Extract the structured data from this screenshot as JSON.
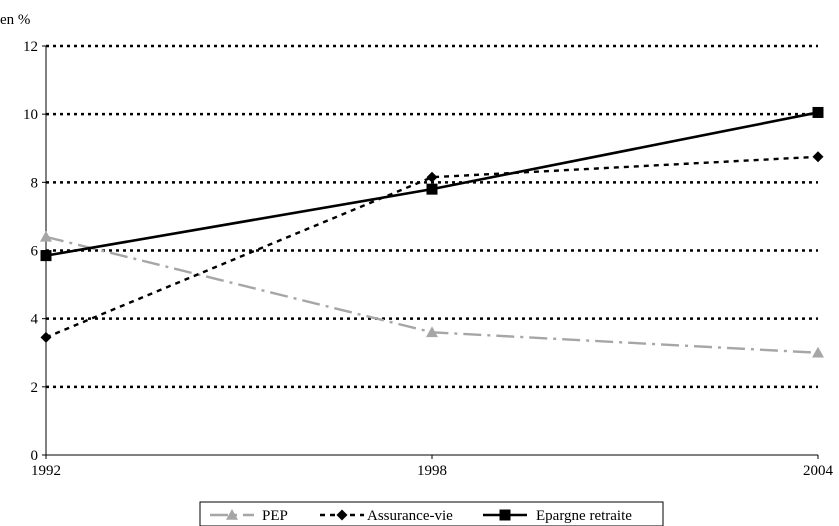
{
  "chart_data": {
    "type": "line",
    "ylabel": "en %",
    "xlabel": "",
    "x": [
      "1992",
      "1998",
      "2004"
    ],
    "ylim": [
      0,
      12
    ],
    "yticks": [
      "0",
      "2",
      "4",
      "6",
      "8",
      "10",
      "12"
    ],
    "grid": "horizontal dotted",
    "legend_position": "bottom",
    "series": [
      {
        "name": "PEP",
        "values": [
          6.4,
          3.6,
          3.0
        ],
        "color": "#a6a6a6",
        "dash": "dash-dot",
        "marker": "triangle"
      },
      {
        "name": "Assurance-vie",
        "values": [
          3.45,
          8.15,
          8.75
        ],
        "color": "#000000",
        "dash": "dotted",
        "marker": "diamond"
      },
      {
        "name": "Epargne retraite",
        "values": [
          5.85,
          7.8,
          10.05
        ],
        "color": "#000000",
        "dash": "solid",
        "marker": "square"
      }
    ]
  }
}
